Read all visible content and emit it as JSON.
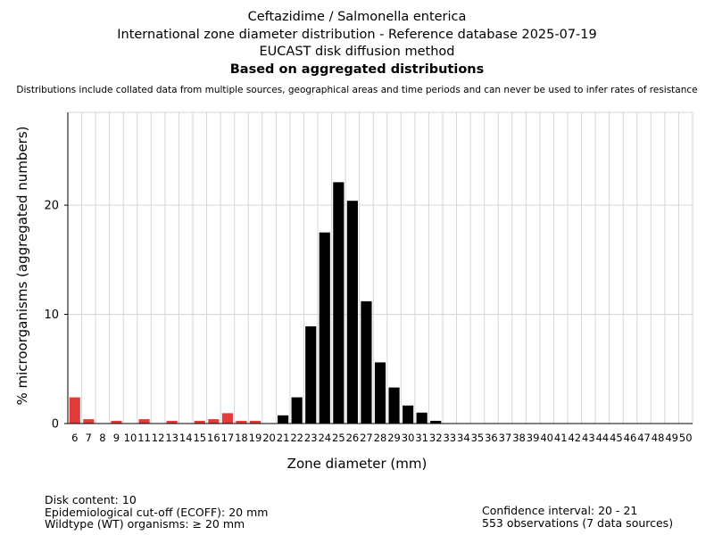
{
  "header": {
    "line1": "Ceftazidime / Salmonella enterica",
    "line2": "International zone diameter distribution - Reference database 2025-07-19",
    "line3": "EUCAST disk diffusion method",
    "line4": "Based on aggregated distributions",
    "note": "Distributions include collated data from multiple sources, geographical areas and time periods and can never be used to infer rates of resistance"
  },
  "footer": {
    "disk_content": "Disk content: 10",
    "ecoff": "Epidemiological cut-off (ECOFF): 20 mm",
    "wildtype": "Wildtype (WT) organisms: ≥ 20 mm",
    "ci": "Confidence interval: 20 - 21",
    "observations": "553 observations (7 data sources)"
  },
  "colors": {
    "non_wildtype": "#e03c3c",
    "wildtype": "#000000",
    "grid": "#d6d6d6"
  },
  "chart_data": {
    "type": "bar",
    "xlabel": "Zone diameter (mm)",
    "ylabel": "% microorganisms (aggregated numbers)",
    "ylim": [
      0,
      28.5
    ],
    "yticks": [
      0,
      10,
      20
    ],
    "grid": true,
    "ecoff": 20,
    "categories": [
      "6",
      "7",
      "8",
      "9",
      "10",
      "11",
      "12",
      "13",
      "14",
      "15",
      "16",
      "17",
      "18",
      "19",
      "20",
      "21",
      "22",
      "23",
      "24",
      "25",
      "26",
      "27",
      "28",
      "29",
      "30",
      "31",
      "32",
      "33",
      "34",
      "35",
      "36",
      "37",
      "38",
      "39",
      "40",
      "41",
      "42",
      "43",
      "44",
      "45",
      "46",
      "47",
      "48",
      "49",
      "50"
    ],
    "values": [
      2.4,
      0.4,
      0,
      0.25,
      0,
      0.4,
      0,
      0.25,
      0,
      0.25,
      0.4,
      0.95,
      0.25,
      0.25,
      0,
      0.75,
      2.4,
      8.9,
      17.5,
      22.1,
      20.4,
      11.2,
      5.6,
      3.3,
      1.65,
      1.0,
      0.25,
      0,
      0,
      0,
      0,
      0,
      0,
      0,
      0,
      0,
      0,
      0,
      0,
      0,
      0,
      0,
      0,
      0,
      0
    ]
  }
}
